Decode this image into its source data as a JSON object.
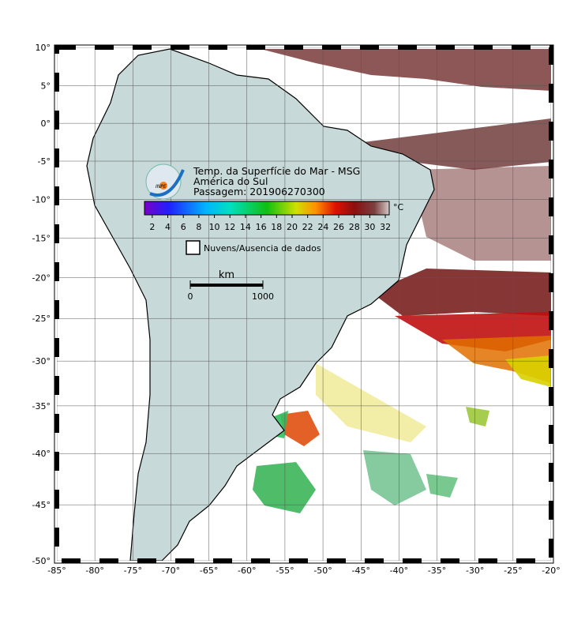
{
  "map": {
    "title_lines": [
      "Temp. da Superfície do Mar - MSG",
      "América do Sul",
      "Passagem: 201906270300"
    ],
    "logo_text": "INPE",
    "lon_lim": [
      -85,
      -20
    ],
    "lat_lim": [
      -50,
      10
    ],
    "lon_ticks": [
      {
        "value": -85,
        "label": "-85°"
      },
      {
        "value": -80,
        "label": "-80°"
      },
      {
        "value": -75,
        "label": "-75°"
      },
      {
        "value": -70,
        "label": "-70°"
      },
      {
        "value": -65,
        "label": "-65°"
      },
      {
        "value": -60,
        "label": "-60°"
      },
      {
        "value": -55,
        "label": "-55°"
      },
      {
        "value": -50,
        "label": "-50°"
      },
      {
        "value": -45,
        "label": "-45°"
      },
      {
        "value": -40,
        "label": "-40°"
      },
      {
        "value": -35,
        "label": "-35°"
      },
      {
        "value": -30,
        "label": "-30°"
      },
      {
        "value": -25,
        "label": "-25°"
      },
      {
        "value": -20,
        "label": "-20°"
      }
    ],
    "lat_ticks": [
      {
        "value": 10,
        "label": "10°"
      },
      {
        "value": 5,
        "label": "5°"
      },
      {
        "value": 0,
        "label": "0°"
      },
      {
        "value": -5,
        "label": "-5°"
      },
      {
        "value": -10,
        "label": "-10°"
      },
      {
        "value": -15,
        "label": "-15°"
      },
      {
        "value": -20,
        "label": "-20°"
      },
      {
        "value": -25,
        "label": "-25°"
      },
      {
        "value": -30,
        "label": "-30°"
      },
      {
        "value": -35,
        "label": "-35°"
      },
      {
        "value": -40,
        "label": "-40°"
      },
      {
        "value": -45,
        "label": "-45°"
      },
      {
        "value": -50,
        "label": "-50°"
      }
    ],
    "colorbar": {
      "range": [
        1,
        32.5
      ],
      "ticks": [
        2,
        4,
        6,
        8,
        10,
        12,
        14,
        16,
        18,
        20,
        22,
        24,
        26,
        28,
        30,
        32
      ],
      "unit": "°C"
    },
    "legend_text": "Nuvens/Ausencia de dados",
    "scale": {
      "unit": "km",
      "ticks": [
        0,
        1000
      ]
    }
  }
}
